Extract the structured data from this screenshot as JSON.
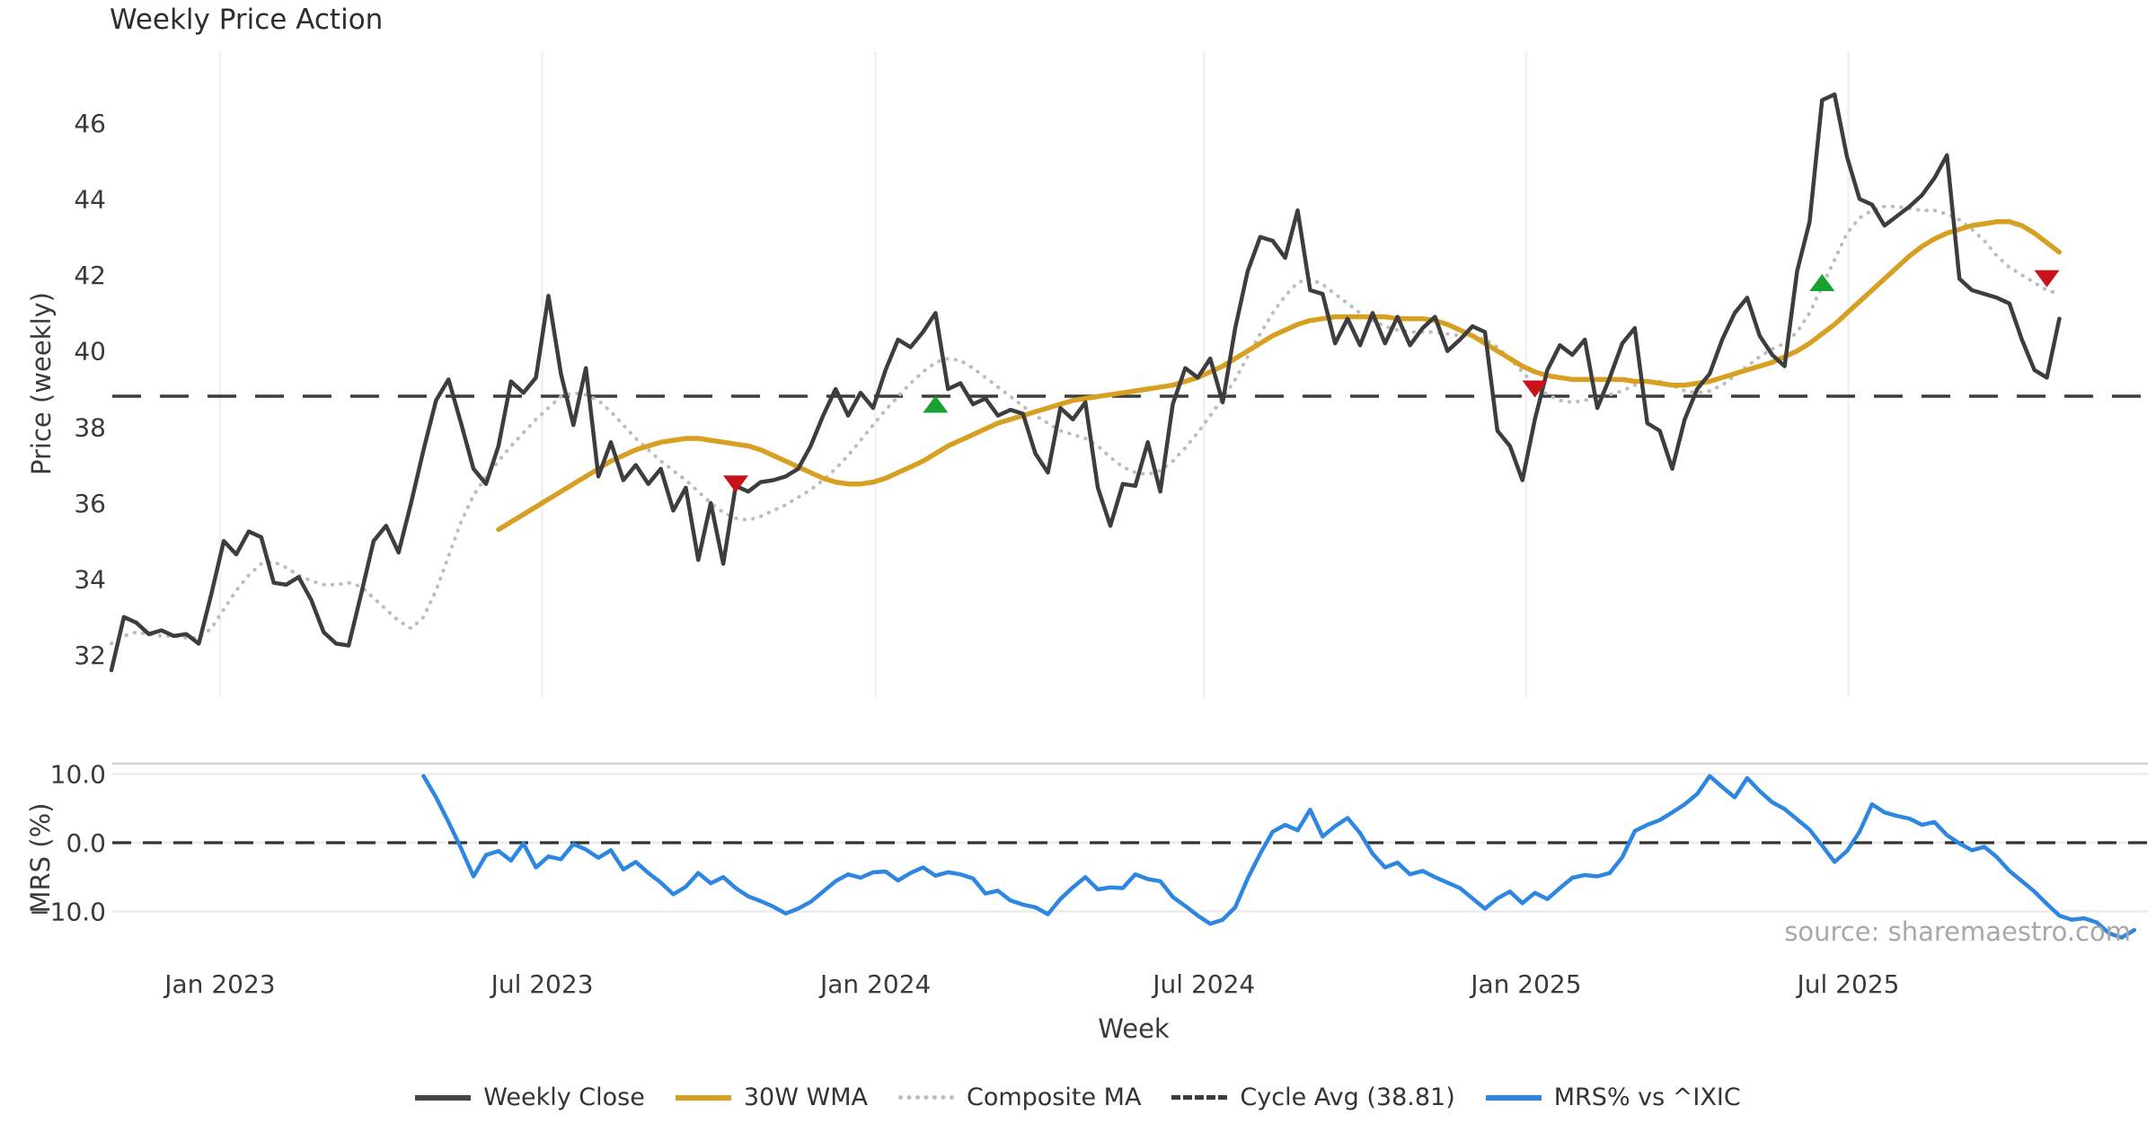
{
  "title": "Weekly Price Action",
  "source_note": "source: sharemaestro.com",
  "legend": [
    {
      "label": "Weekly Close",
      "color": "#454545",
      "style": "solid"
    },
    {
      "label": "30W WMA",
      "color": "#d7a022",
      "style": "solid"
    },
    {
      "label": "Composite MA",
      "color": "#bdbdbd",
      "style": "dotted"
    },
    {
      "label": "Cycle Avg (38.81)",
      "color": "#3c3c3c",
      "style": "dashed"
    },
    {
      "label": "MRS% vs ^IXIC",
      "color": "#2d86e0",
      "style": "solid"
    }
  ],
  "chart_data": {
    "type": "line",
    "title": "Weekly Price Action",
    "x_axis": {
      "label": "Week",
      "tick_labels": [
        "Jan 2023",
        "Jul 2023",
        "Jan 2024",
        "Jul 2024",
        "Jan 2025",
        "Jul 2025"
      ],
      "tick_weeks": [
        8.7,
        34.5,
        61.2,
        87.5,
        113.3,
        139.1
      ]
    },
    "price_panel": {
      "ylabel": "Price (weekly)",
      "ytick_labels": [
        "46",
        "44",
        "42",
        "40",
        "38",
        "36",
        "34",
        "32"
      ],
      "yticks": [
        46,
        44,
        42,
        40,
        38,
        36,
        34,
        32
      ],
      "ylim": [
        30.9,
        47.9
      ],
      "cycle_avg": 38.81,
      "series": [
        {
          "name": "Weekly Close",
          "color": "#3d3d3d",
          "style": "solid",
          "width": 4.5,
          "start_week": 0,
          "values": [
            31.6,
            33.0,
            32.85,
            32.55,
            32.65,
            32.5,
            32.55,
            32.3,
            33.6,
            35.0,
            34.65,
            35.25,
            35.1,
            33.9,
            33.85,
            34.05,
            33.45,
            32.6,
            32.3,
            32.25,
            33.6,
            35.0,
            35.4,
            34.7,
            36.0,
            37.4,
            38.7,
            39.25,
            38.1,
            36.9,
            36.5,
            37.5,
            39.2,
            38.9,
            39.3,
            41.45,
            39.4,
            38.05,
            39.55,
            36.7,
            37.6,
            36.6,
            37.0,
            36.5,
            36.9,
            35.8,
            36.4,
            34.5,
            36.0,
            34.4,
            36.45,
            36.3,
            36.55,
            36.6,
            36.7,
            36.9,
            37.5,
            38.3,
            39.0,
            38.3,
            38.9,
            38.5,
            39.5,
            40.3,
            40.1,
            40.5,
            41.0,
            39.0,
            39.15,
            38.6,
            38.75,
            38.3,
            38.45,
            38.35,
            37.3,
            36.8,
            38.5,
            38.2,
            38.65,
            36.4,
            35.4,
            36.5,
            36.45,
            37.6,
            36.3,
            38.6,
            39.55,
            39.3,
            39.8,
            38.65,
            40.6,
            42.1,
            43.0,
            42.9,
            42.45,
            43.7,
            41.6,
            41.5,
            40.2,
            40.85,
            40.15,
            41.0,
            40.2,
            40.9,
            40.15,
            40.6,
            40.9,
            40.0,
            40.3,
            40.65,
            40.5,
            37.9,
            37.5,
            36.6,
            38.2,
            39.5,
            40.15,
            39.9,
            40.3,
            38.5,
            39.3,
            40.2,
            40.6,
            38.1,
            37.9,
            36.9,
            38.2,
            39.0,
            39.4,
            40.3,
            41.0,
            41.4,
            40.4,
            39.9,
            39.6,
            42.1,
            43.4,
            46.6,
            46.75,
            45.1,
            44.0,
            43.85,
            43.3,
            43.55,
            43.8,
            44.1,
            44.55,
            45.15,
            41.9,
            41.6,
            41.5,
            41.4,
            41.25,
            40.3,
            39.5,
            39.3,
            40.85
          ]
        },
        {
          "name": "30W WMA",
          "color": "#d7a022",
          "style": "solid",
          "width": 5.5,
          "start_week": 31,
          "values": [
            35.3,
            35.5,
            35.7,
            35.9,
            36.1,
            36.3,
            36.5,
            36.7,
            36.9,
            37.1,
            37.25,
            37.4,
            37.5,
            37.6,
            37.65,
            37.7,
            37.7,
            37.65,
            37.6,
            37.55,
            37.5,
            37.4,
            37.25,
            37.1,
            36.95,
            36.8,
            36.65,
            36.55,
            36.5,
            36.5,
            36.55,
            36.65,
            36.8,
            36.95,
            37.1,
            37.3,
            37.5,
            37.65,
            37.8,
            37.95,
            38.1,
            38.2,
            38.3,
            38.4,
            38.5,
            38.6,
            38.7,
            38.75,
            38.8,
            38.85,
            38.9,
            38.95,
            39.0,
            39.05,
            39.1,
            39.2,
            39.3,
            39.45,
            39.6,
            39.8,
            40.0,
            40.2,
            40.4,
            40.55,
            40.7,
            40.8,
            40.85,
            40.9,
            40.9,
            40.9,
            40.9,
            40.9,
            40.85,
            40.85,
            40.85,
            40.8,
            40.7,
            40.55,
            40.4,
            40.2,
            40.0,
            39.8,
            39.6,
            39.45,
            39.35,
            39.3,
            39.25,
            39.25,
            39.25,
            39.25,
            39.25,
            39.2,
            39.2,
            39.15,
            39.1,
            39.1,
            39.15,
            39.2,
            39.3,
            39.4,
            39.5,
            39.6,
            39.7,
            39.85,
            40.0,
            40.2,
            40.45,
            40.7,
            41.0,
            41.3,
            41.6,
            41.9,
            42.2,
            42.5,
            42.75,
            42.95,
            43.1,
            43.2,
            43.3,
            43.35,
            43.4,
            43.4,
            43.3,
            43.1,
            42.85,
            42.6
          ]
        },
        {
          "name": "Composite MA",
          "color": "#bdbdbd",
          "style": "dotted",
          "width": 4,
          "start_week": 0,
          "values": [
            32.3,
            32.5,
            32.6,
            32.55,
            32.5,
            32.5,
            32.45,
            32.45,
            32.7,
            33.2,
            33.7,
            34.1,
            34.4,
            34.45,
            34.3,
            34.1,
            33.95,
            33.85,
            33.85,
            33.9,
            33.8,
            33.5,
            33.2,
            32.9,
            32.7,
            33.0,
            33.7,
            34.6,
            35.5,
            36.2,
            36.7,
            37.1,
            37.5,
            37.85,
            38.2,
            38.5,
            38.8,
            38.9,
            38.85,
            38.7,
            38.4,
            38.05,
            37.7,
            37.4,
            37.1,
            36.85,
            36.6,
            36.3,
            36.0,
            35.75,
            35.6,
            35.55,
            35.65,
            35.8,
            35.95,
            36.15,
            36.35,
            36.6,
            36.9,
            37.25,
            37.65,
            38.05,
            38.45,
            38.8,
            39.15,
            39.45,
            39.7,
            39.8,
            39.75,
            39.55,
            39.3,
            39.05,
            38.8,
            38.55,
            38.3,
            38.1,
            37.9,
            37.8,
            37.7,
            37.5,
            37.2,
            36.95,
            36.8,
            36.75,
            36.85,
            37.1,
            37.45,
            37.85,
            38.3,
            38.75,
            39.25,
            39.85,
            40.45,
            41.0,
            41.45,
            41.8,
            41.9,
            41.75,
            41.5,
            41.25,
            41.0,
            40.8,
            40.65,
            40.55,
            40.5,
            40.5,
            40.5,
            40.45,
            40.4,
            40.4,
            40.3,
            40.1,
            39.8,
            39.45,
            39.1,
            38.85,
            38.7,
            38.65,
            38.7,
            38.8,
            38.85,
            38.95,
            39.1,
            39.2,
            39.2,
            39.1,
            38.95,
            38.9,
            38.95,
            39.1,
            39.35,
            39.6,
            39.85,
            40.05,
            40.2,
            40.5,
            41.0,
            41.7,
            42.4,
            43.1,
            43.5,
            43.7,
            43.8,
            43.8,
            43.75,
            43.7,
            43.7,
            43.6,
            43.45,
            43.2,
            42.9,
            42.5,
            42.2,
            42.0,
            41.8,
            41.6,
            41.5
          ]
        }
      ],
      "markers": [
        {
          "week": 50,
          "value": 36.5,
          "type": "sell"
        },
        {
          "week": 66,
          "value": 38.6,
          "type": "buy"
        },
        {
          "week": 114,
          "value": 39.0,
          "type": "sell"
        },
        {
          "week": 137,
          "value": 41.8,
          "type": "buy"
        },
        {
          "week": 155,
          "value": 41.9,
          "type": "sell"
        }
      ],
      "marker_colors": {
        "buy": "#17a12e",
        "sell": "#c9121a"
      }
    },
    "mrs_panel": {
      "ylabel": "MRS (%)",
      "ytick_labels": [
        "10.0",
        "0.0",
        "−10.0"
      ],
      "yticks": [
        10,
        0,
        -10
      ],
      "zero_line_dashed": true,
      "series": [
        {
          "name": "MRS% vs ^IXIC",
          "color": "#2d86e0",
          "style": "solid",
          "width": 4.5,
          "start_week": 25,
          "values": [
            9.7,
            6.6,
            3.0,
            -0.8,
            -4.9,
            -1.8,
            -1.2,
            -2.6,
            -0.1,
            -3.6,
            -2.0,
            -2.4,
            -0.2,
            -1.0,
            -2.2,
            -1.1,
            -3.9,
            -2.8,
            -4.4,
            -5.8,
            -7.5,
            -6.4,
            -4.4,
            -5.9,
            -5.0,
            -6.6,
            -7.8,
            -8.5,
            -9.3,
            -10.3,
            -9.6,
            -8.6,
            -7.1,
            -5.6,
            -4.6,
            -5.1,
            -4.3,
            -4.2,
            -5.5,
            -4.4,
            -3.6,
            -4.8,
            -4.3,
            -4.6,
            -5.2,
            -7.4,
            -7.0,
            -8.4,
            -9.0,
            -9.4,
            -10.4,
            -8.2,
            -6.5,
            -5.0,
            -6.8,
            -6.5,
            -6.6,
            -4.6,
            -5.3,
            -5.6,
            -7.9,
            -9.2,
            -10.6,
            -11.8,
            -11.2,
            -9.4,
            -5.2,
            -1.6,
            1.6,
            2.6,
            1.8,
            4.8,
            0.9,
            2.4,
            3.6,
            1.4,
            -1.6,
            -3.6,
            -2.9,
            -4.6,
            -4.1,
            -5.0,
            -5.8,
            -6.6,
            -8.1,
            -9.6,
            -8.1,
            -7.1,
            -8.8,
            -7.3,
            -8.2,
            -6.6,
            -5.1,
            -4.7,
            -4.9,
            -4.4,
            -2.1,
            1.7,
            2.6,
            3.3,
            4.4,
            5.6,
            7.1,
            9.7,
            8.1,
            6.6,
            9.4,
            7.5,
            5.9,
            4.9,
            3.4,
            1.9,
            -0.4,
            -2.8,
            -1.2,
            1.6,
            5.6,
            4.4,
            3.9,
            3.5,
            2.6,
            3.0,
            1.1,
            -0.1,
            -1.1,
            -0.6,
            -2.1,
            -4.1,
            -5.6,
            -7.1,
            -8.9,
            -10.6,
            -11.2,
            -11.0,
            -11.6,
            -13.2,
            -13.8,
            -12.7
          ]
        }
      ]
    }
  }
}
